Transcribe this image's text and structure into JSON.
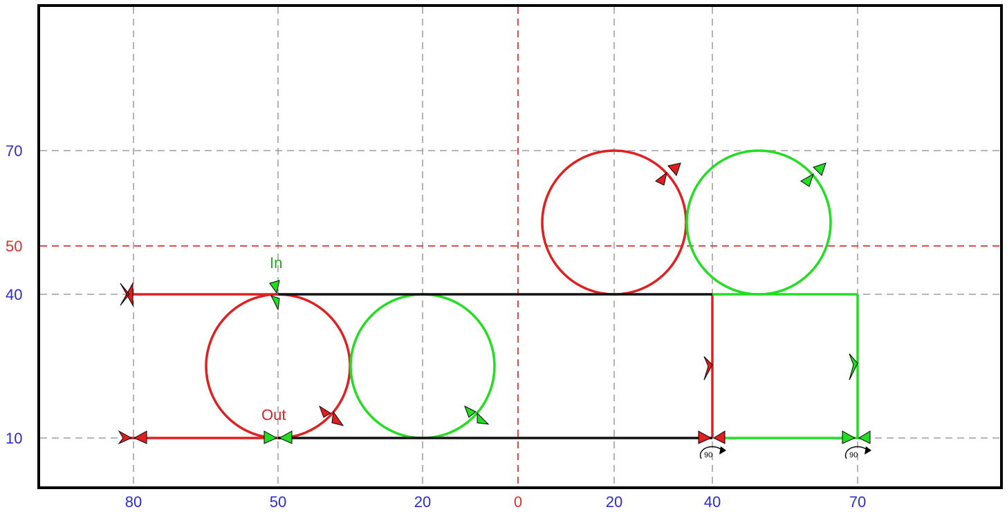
{
  "x_axis_labels": [
    {
      "text": "80",
      "color": "#2b2bd6"
    },
    {
      "text": "50",
      "color": "#2b2bd6"
    },
    {
      "text": "20",
      "color": "#2b2bd6"
    },
    {
      "text": "0",
      "color": "#e03030"
    },
    {
      "text": "20",
      "color": "#2b2bd6"
    },
    {
      "text": "40",
      "color": "#2b2bd6"
    },
    {
      "text": "70",
      "color": "#2b2bd6"
    }
  ],
  "y_axis_labels": [
    {
      "text": "70",
      "color": "#2b2bd6"
    },
    {
      "text": "50",
      "color": "#e03030"
    },
    {
      "text": "40",
      "color": "#2b2bd6"
    },
    {
      "text": "10",
      "color": "#2b2bd6"
    }
  ],
  "annotations": {
    "in_label": "In",
    "out_label": "Out",
    "rotation_left": "90",
    "rotation_right": "90"
  },
  "colors": {
    "out_path": "#e02020",
    "in_path": "#22dd22",
    "shared_path": "#111111",
    "axis_origin": "#e03030",
    "grid": "#888888",
    "frame": "#000000"
  }
}
